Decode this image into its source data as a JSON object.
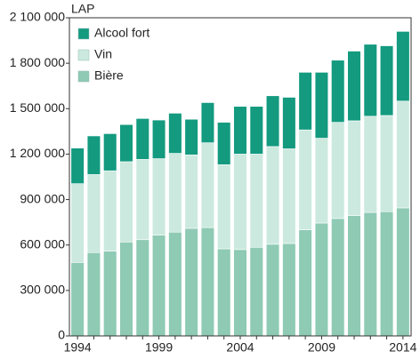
{
  "chart_data": {
    "type": "stacked_bar",
    "y_axis_label": "LAP",
    "categories": [
      "1994",
      null,
      null,
      null,
      null,
      "1999",
      null,
      null,
      null,
      null,
      "2004",
      null,
      null,
      null,
      null,
      "2009",
      null,
      null,
      null,
      null,
      "2014"
    ],
    "series": [
      {
        "name": "Bière",
        "color": "#8ecab4",
        "values": [
          485000,
          550000,
          560000,
          620000,
          635000,
          665000,
          685000,
          710000,
          715000,
          575000,
          570000,
          585000,
          605000,
          610000,
          700000,
          745000,
          775000,
          795000,
          815000,
          820000,
          845000
        ]
      },
      {
        "name": "Vin",
        "color": "#cbe9df",
        "values": [
          520000,
          515000,
          530000,
          530000,
          530000,
          505000,
          520000,
          485000,
          560000,
          555000,
          630000,
          615000,
          645000,
          625000,
          660000,
          560000,
          635000,
          625000,
          635000,
          635000,
          705000
        ]
      },
      {
        "name": "Alcool fort",
        "color": "#139a7f",
        "values": [
          235000,
          255000,
          245000,
          245000,
          270000,
          255000,
          265000,
          235000,
          265000,
          280000,
          315000,
          315000,
          335000,
          340000,
          380000,
          435000,
          410000,
          460000,
          475000,
          460000,
          460000
        ]
      }
    ],
    "ylim": [
      0,
      2100000
    ],
    "yticks": [
      0,
      {
        "value": 300000,
        "label": "300 000"
      },
      {
        "value": 600000,
        "label": "600 000"
      },
      {
        "value": 900000,
        "label": "900 000"
      },
      {
        "value": 1200000,
        "label": "1 200 000"
      },
      {
        "value": 1500000,
        "label": "1 500 000"
      },
      {
        "value": 1800000,
        "label": "1 800 000"
      },
      {
        "value": 2100000,
        "label": "2 100 000"
      }
    ],
    "legend": "top-left",
    "grid": false
  }
}
